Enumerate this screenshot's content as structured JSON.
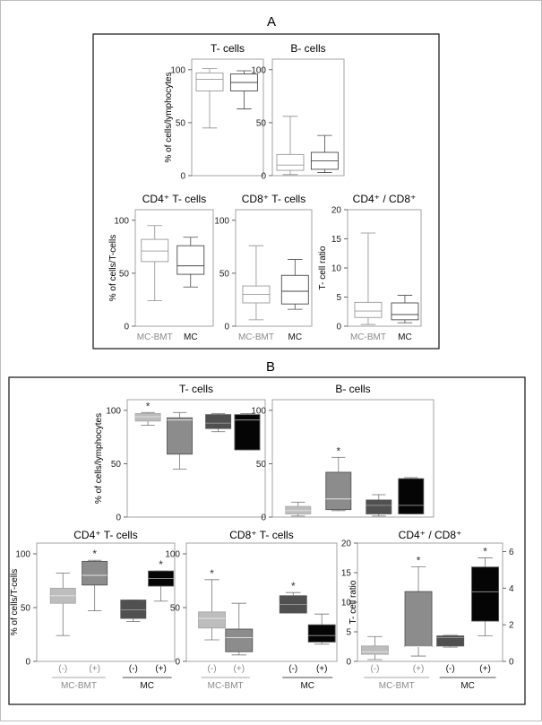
{
  "panels": {
    "A": {
      "label": "A"
    },
    "B": {
      "label": "B"
    }
  },
  "colors": {
    "mc_bmt_minus": "#bdbdbd",
    "mc_bmt_plus": "#8c8c8c",
    "mc_minus": "#505050",
    "mc_plus": "#050505"
  },
  "chart_data": [
    {
      "id": "A-tcells",
      "panel": "A",
      "type": "box",
      "title": "T- cells",
      "ylabel": "% of cells/lymphocytes",
      "ylim": [
        0,
        110
      ],
      "yticks": [
        0,
        50,
        100
      ],
      "boxes": [
        {
          "group": "MC-BMT",
          "min": 45,
          "q1": 80,
          "median": 91,
          "q3": 97,
          "max": 101
        },
        {
          "group": "MC",
          "min": 63,
          "q1": 80,
          "median": 88,
          "q3": 96,
          "max": 99
        }
      ]
    },
    {
      "id": "A-bcells",
      "panel": "A",
      "type": "box",
      "title": "B- cells",
      "ylabel": "",
      "ylim": [
        0,
        110
      ],
      "yticks": [
        0,
        50,
        100
      ],
      "boxes": [
        {
          "group": "MC-BMT",
          "min": 1,
          "q1": 5,
          "median": 10,
          "q3": 20,
          "max": 56
        },
        {
          "group": "MC",
          "min": 3,
          "q1": 6,
          "median": 14,
          "q3": 22,
          "max": 38
        }
      ]
    },
    {
      "id": "A-cd4",
      "panel": "A",
      "type": "box",
      "title": "CD4⁺ T- cells",
      "ylabel": "% of cells/T-cells",
      "ylim": [
        0,
        110
      ],
      "yticks": [
        0,
        50,
        100
      ],
      "xgroups": [
        {
          "label": "MC-BMT"
        },
        {
          "label": "MC"
        }
      ],
      "boxes": [
        {
          "group": "MC-BMT",
          "min": 24,
          "q1": 61,
          "median": 71,
          "q3": 82,
          "max": 95
        },
        {
          "group": "MC",
          "min": 37,
          "q1": 49,
          "median": 57,
          "q3": 76,
          "max": 84
        }
      ]
    },
    {
      "id": "A-cd8",
      "panel": "A",
      "type": "box",
      "title": "CD8⁺ T- cells",
      "ylabel": "",
      "ylim": [
        0,
        110
      ],
      "yticks": [
        0,
        50,
        100
      ],
      "xgroups": [
        {
          "label": "MC-BMT"
        },
        {
          "label": "MC"
        }
      ],
      "boxes": [
        {
          "group": "MC-BMT",
          "min": 6,
          "q1": 22,
          "median": 30,
          "q3": 38,
          "max": 76
        },
        {
          "group": "MC",
          "min": 16,
          "q1": 21,
          "median": 33,
          "q3": 48,
          "max": 63
        }
      ]
    },
    {
      "id": "A-ratio",
      "panel": "A",
      "type": "box",
      "title": "CD4⁺ / CD8⁺",
      "ylabel": "T- cell ratio",
      "ylim": [
        0,
        20
      ],
      "yticks": [
        0,
        5,
        10,
        15,
        20
      ],
      "xgroups": [
        {
          "label": "MC-BMT"
        },
        {
          "label": "MC"
        }
      ],
      "boxes": [
        {
          "group": "MC-BMT",
          "min": 0.3,
          "q1": 1.5,
          "median": 2.6,
          "q3": 4.1,
          "max": 16
        },
        {
          "group": "MC",
          "min": 0.6,
          "q1": 1.1,
          "median": 2.0,
          "q3": 4.0,
          "max": 5.3
        }
      ]
    },
    {
      "id": "B-tcells",
      "panel": "B",
      "type": "box",
      "title": "T- cells",
      "ylabel": "% of cells/lymphocytes",
      "ylim": [
        0,
        110
      ],
      "yticks": [
        0,
        50,
        100
      ],
      "boxes": [
        {
          "group": "MC-BMT (-)",
          "min": 86,
          "q1": 90,
          "median": 94,
          "q3": 97,
          "max": 98,
          "star": "*",
          "fill": "#bdbdbd"
        },
        {
          "group": "MC-BMT (+)",
          "min": 45,
          "q1": 59,
          "median": 91,
          "q3": 93,
          "max": 98,
          "fill": "#8c8c8c"
        },
        {
          "group": "MC (-)",
          "min": 80,
          "q1": 83,
          "median": 88,
          "q3": 96,
          "max": 97,
          "fill": "#505050"
        },
        {
          "group": "MC (+)",
          "min": 63,
          "q1": 63,
          "median": 91,
          "q3": 96,
          "max": 97,
          "fill": "#050505"
        }
      ]
    },
    {
      "id": "B-bcells",
      "panel": "B",
      "type": "box",
      "title": "B- cells",
      "ylabel": "",
      "ylim": [
        0,
        110
      ],
      "yticks": [
        0,
        50,
        100
      ],
      "boxes": [
        {
          "group": "MC-BMT (-)",
          "min": 1,
          "q1": 3,
          "median": 6,
          "q3": 10,
          "max": 14,
          "fill": "#bdbdbd"
        },
        {
          "group": "MC-BMT (+)",
          "min": 6,
          "q1": 7,
          "median": 17,
          "q3": 42,
          "max": 56,
          "star": "*",
          "fill": "#8c8c8c"
        },
        {
          "group": "MC (-)",
          "min": 1,
          "q1": 3,
          "median": 11,
          "q3": 16,
          "max": 21,
          "fill": "#505050"
        },
        {
          "group": "MC (+)",
          "min": 3,
          "q1": 3,
          "median": 11,
          "q3": 36,
          "max": 37,
          "fill": "#050505"
        }
      ]
    },
    {
      "id": "B-cd4",
      "panel": "B",
      "type": "box",
      "title": "CD4⁺ T- cells",
      "ylabel": "% of cells/T-cells",
      "ylim": [
        0,
        110
      ],
      "yticks": [
        0,
        50,
        100
      ],
      "xlabels": [
        "(-)",
        "(+)",
        "(-)",
        "(+)"
      ],
      "xgroups": [
        {
          "label": "MC-BMT"
        },
        {
          "label": "MC"
        }
      ],
      "boxes": [
        {
          "group": "MC-BMT (-)",
          "min": 24,
          "q1": 54,
          "median": 61,
          "q3": 68,
          "max": 82,
          "fill": "#bdbdbd"
        },
        {
          "group": "MC-BMT (+)",
          "min": 47,
          "q1": 71,
          "median": 80,
          "q3": 93,
          "max": 94,
          "star": "*",
          "fill": "#8c8c8c"
        },
        {
          "group": "MC (-)",
          "min": 37,
          "q1": 40,
          "median": 48,
          "q3": 57,
          "max": 57,
          "fill": "#505050"
        },
        {
          "group": "MC (+)",
          "min": 56,
          "q1": 70,
          "median": 77,
          "q3": 84,
          "max": 84,
          "star": "*",
          "fill": "#050505"
        }
      ]
    },
    {
      "id": "B-cd8",
      "panel": "B",
      "type": "box",
      "title": "CD8⁺ T- cells",
      "ylabel": "",
      "ylim": [
        0,
        110
      ],
      "yticks": [
        0,
        50,
        100
      ],
      "xlabels": [
        "(-)",
        "(+)",
        "(-)",
        "(+)"
      ],
      "xgroups": [
        {
          "label": "MC-BMT"
        },
        {
          "label": "MC"
        }
      ],
      "boxes": [
        {
          "group": "MC-BMT (-)",
          "min": 20,
          "q1": 31,
          "median": 40,
          "q3": 46,
          "max": 76,
          "star": "*",
          "fill": "#bdbdbd"
        },
        {
          "group": "MC-BMT (+)",
          "min": 6,
          "q1": 9,
          "median": 22,
          "q3": 30,
          "max": 54,
          "fill": "#8c8c8c"
        },
        {
          "group": "MC (-)",
          "min": 45,
          "q1": 45,
          "median": 53,
          "q3": 61,
          "max": 64,
          "star": "*",
          "fill": "#505050"
        },
        {
          "group": "MC (+)",
          "min": 16,
          "q1": 18,
          "median": 24,
          "q3": 34,
          "max": 44,
          "fill": "#050505"
        }
      ]
    },
    {
      "id": "B-ratio",
      "panel": "B",
      "type": "box",
      "title": "CD4⁺ / CD8⁺",
      "ylabel": "T- cell ratio",
      "ylim": [
        0,
        20
      ],
      "yticks": [
        0,
        5,
        10,
        15,
        20
      ],
      "y2lim": [
        0,
        6.46
      ],
      "y2ticks": [
        0,
        2,
        4,
        6
      ],
      "xlabels": [
        "(-)",
        "(+)",
        "(-)",
        "(+)"
      ],
      "xgroups": [
        {
          "label": "MC-BMT"
        },
        {
          "label": "MC"
        }
      ],
      "boxes": [
        {
          "group": "MC-BMT (-)",
          "axis": "left",
          "min": 0.3,
          "q1": 1.2,
          "median": 1.6,
          "q3": 2.6,
          "max": 4.2,
          "fill": "#bdbdbd"
        },
        {
          "group": "MC-BMT (+)",
          "axis": "left",
          "min": 0.9,
          "q1": 2.5,
          "median": 2.5,
          "q3": 11.8,
          "max": 16,
          "star": "*",
          "fill": "#8c8c8c"
        },
        {
          "group": "MC (-)",
          "axis": "left",
          "min": 2.4,
          "q1": 2.6,
          "median": 4.0,
          "q3": 4.3,
          "max": 4.4,
          "fill": "#505050"
        },
        {
          "group": "MC (+)",
          "axis": "right",
          "min": 1.4,
          "q1": 2.2,
          "median": 3.8,
          "q3": 5.15,
          "max": 5.65,
          "star": "*",
          "fill": "#050505"
        }
      ]
    }
  ]
}
